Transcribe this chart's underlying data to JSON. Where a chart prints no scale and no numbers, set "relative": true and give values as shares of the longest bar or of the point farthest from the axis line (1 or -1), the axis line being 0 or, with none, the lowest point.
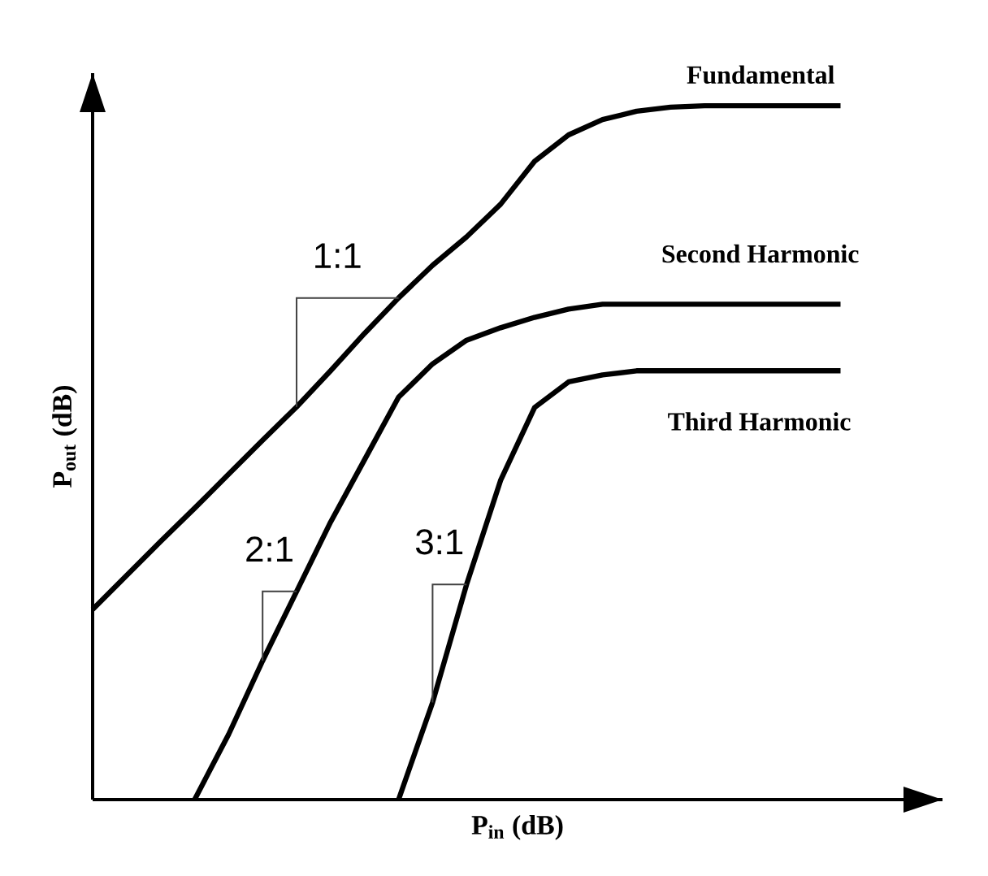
{
  "chart_data": {
    "type": "line",
    "relative": true,
    "xlabel": "P$_{in}$ (dB)",
    "ylabel": "P$_{out}$ (dB)",
    "marker": "none",
    "line_style": "solid",
    "categories": [
      null,
      null,
      null,
      null,
      null,
      null,
      null,
      null,
      null,
      null,
      null,
      null,
      null,
      null,
      null,
      null,
      null,
      null,
      null,
      null,
      null,
      null,
      null
    ],
    "series": [
      {
        "name": "Fundamental",
        "color": "#000000",
        "values": [
          0.274,
          0.323,
          0.372,
          0.42,
          0.469,
          0.518,
          0.566,
          0.618,
          0.672,
          0.723,
          0.77,
          0.811,
          0.858,
          0.92,
          0.958,
          0.98,
          0.992,
          0.998,
          1,
          1,
          1,
          1,
          1
        ]
      },
      {
        "name": "Second Harmonic",
        "color": "#000000",
        "values": [
          null,
          null,
          null,
          0,
          0.094,
          0.2,
          0.3,
          0.4,
          0.49,
          0.58,
          0.628,
          0.662,
          0.68,
          0.695,
          0.707,
          0.714,
          0.714,
          0.714,
          0.714,
          0.714,
          0.714,
          0.714,
          0.714
        ]
      },
      {
        "name": "Third Harmonic",
        "color": "#000000",
        "values": [
          null,
          null,
          null,
          null,
          null,
          null,
          null,
          null,
          null,
          0,
          0.14,
          0.31,
          0.46,
          0.565,
          0.602,
          0.612,
          0.618,
          0.618,
          0.618,
          0.618,
          0.618,
          0.618,
          0.618
        ]
      }
    ],
    "annotations": [
      "1:1",
      "2:1",
      "3:1"
    ]
  }
}
